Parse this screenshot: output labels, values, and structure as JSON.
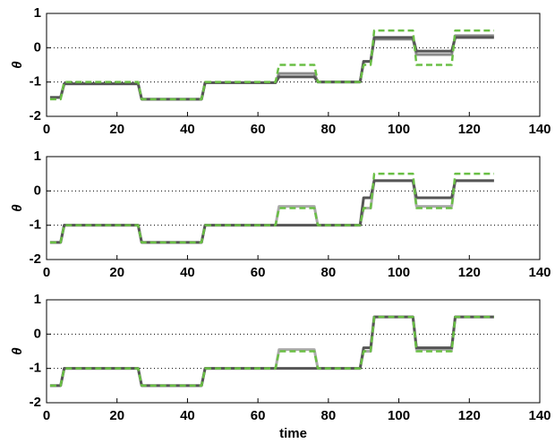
{
  "chart_data": [
    {
      "type": "line",
      "ylabel": "θ",
      "x": [
        1,
        4,
        5,
        26,
        27,
        44,
        45,
        65,
        66,
        76,
        77,
        89,
        90,
        92,
        93,
        104,
        105,
        115,
        116,
        127
      ],
      "xlim": [
        0,
        140
      ],
      "xticks": [
        0,
        20,
        40,
        60,
        80,
        100,
        120,
        140
      ],
      "ylim": [
        -2,
        1
      ],
      "yticks": [
        -2,
        -1,
        0,
        1
      ],
      "grid": true,
      "series": [
        {
          "color": "#8a8a8a",
          "dashed": false,
          "values": [
            -1.45,
            -1.45,
            -1.05,
            -1.05,
            -1.5,
            -1.5,
            -1.02,
            -1.02,
            -0.75,
            -0.75,
            -1,
            -1,
            -0.4,
            -0.4,
            0.25,
            0.25,
            -0.2,
            -0.2,
            0.35,
            0.35
          ]
        },
        {
          "color": "#555555",
          "dashed": false,
          "values": [
            -1.45,
            -1.45,
            -1.05,
            -1.05,
            -1.5,
            -1.5,
            -1.02,
            -1.02,
            -0.85,
            -0.85,
            -1,
            -1,
            -0.4,
            -0.4,
            0.3,
            0.3,
            -0.1,
            -0.1,
            0.3,
            0.3
          ]
        },
        {
          "color": "#6abf45",
          "dashed": true,
          "values": [
            -1.5,
            -1.5,
            -1,
            -1,
            -1.5,
            -1.5,
            -1,
            -1,
            -0.5,
            -0.5,
            -1,
            -1,
            -0.5,
            -0.5,
            0.5,
            0.5,
            -0.5,
            -0.5,
            0.5,
            0.5
          ]
        }
      ]
    },
    {
      "type": "line",
      "ylabel": "θ",
      "x": [
        1,
        4,
        5,
        26,
        27,
        44,
        45,
        65,
        66,
        76,
        77,
        89,
        90,
        92,
        93,
        104,
        105,
        115,
        116,
        127
      ],
      "xlim": [
        0,
        140
      ],
      "xticks": [
        0,
        20,
        40,
        60,
        80,
        100,
        120,
        140
      ],
      "ylim": [
        -2,
        1
      ],
      "yticks": [
        -2,
        -1,
        0,
        1
      ],
      "grid": true,
      "series": [
        {
          "color": "#aaaaaa",
          "dashed": false,
          "values": [
            -1.5,
            -1.5,
            -1,
            -1,
            -1.5,
            -1.5,
            -1,
            -1,
            -0.45,
            -0.45,
            -1,
            -1,
            -0.5,
            -0.5,
            0.3,
            0.3,
            -0.45,
            -0.45,
            0.3,
            0.3
          ]
        },
        {
          "color": "#555555",
          "dashed": false,
          "values": [
            -1.5,
            -1.5,
            -1,
            -1,
            -1.5,
            -1.5,
            -1,
            -1,
            -1,
            -1,
            -1,
            -1,
            -0.2,
            -0.2,
            0.3,
            0.3,
            -0.2,
            -0.2,
            0.3,
            0.3
          ]
        },
        {
          "color": "#6abf45",
          "dashed": true,
          "values": [
            -1.5,
            -1.5,
            -1,
            -1,
            -1.5,
            -1.5,
            -1,
            -1,
            -0.5,
            -0.5,
            -1,
            -1,
            -0.5,
            -0.5,
            0.5,
            0.5,
            -0.5,
            -0.5,
            0.5,
            0.5
          ]
        }
      ]
    },
    {
      "type": "line",
      "ylabel": "θ",
      "xlabel": "time",
      "x": [
        1,
        4,
        5,
        26,
        27,
        44,
        45,
        65,
        66,
        76,
        77,
        89,
        90,
        92,
        93,
        104,
        105,
        115,
        116,
        127
      ],
      "xlim": [
        0,
        140
      ],
      "xticks": [
        0,
        20,
        40,
        60,
        80,
        100,
        120,
        140
      ],
      "ylim": [
        -2,
        1
      ],
      "yticks": [
        -2,
        -1,
        0,
        1
      ],
      "grid": true,
      "series": [
        {
          "color": "#aaaaaa",
          "dashed": false,
          "values": [
            -1.5,
            -1.5,
            -1,
            -1,
            -1.5,
            -1.5,
            -1,
            -1,
            -0.45,
            -0.45,
            -1,
            -1,
            -0.5,
            -0.5,
            0.5,
            0.5,
            -0.45,
            -0.45,
            0.5,
            0.5
          ]
        },
        {
          "color": "#555555",
          "dashed": false,
          "values": [
            -1.5,
            -1.5,
            -1,
            -1,
            -1.5,
            -1.5,
            -1,
            -1,
            -1,
            -1,
            -1,
            -1,
            -0.4,
            -0.4,
            0.5,
            0.5,
            -0.4,
            -0.4,
            0.5,
            0.5
          ]
        },
        {
          "color": "#6abf45",
          "dashed": true,
          "values": [
            -1.5,
            -1.5,
            -1,
            -1,
            -1.5,
            -1.5,
            -1,
            -1,
            -0.5,
            -0.5,
            -1,
            -1,
            -0.5,
            -0.5,
            0.5,
            0.5,
            -0.5,
            -0.5,
            0.5,
            0.5
          ]
        }
      ]
    }
  ]
}
